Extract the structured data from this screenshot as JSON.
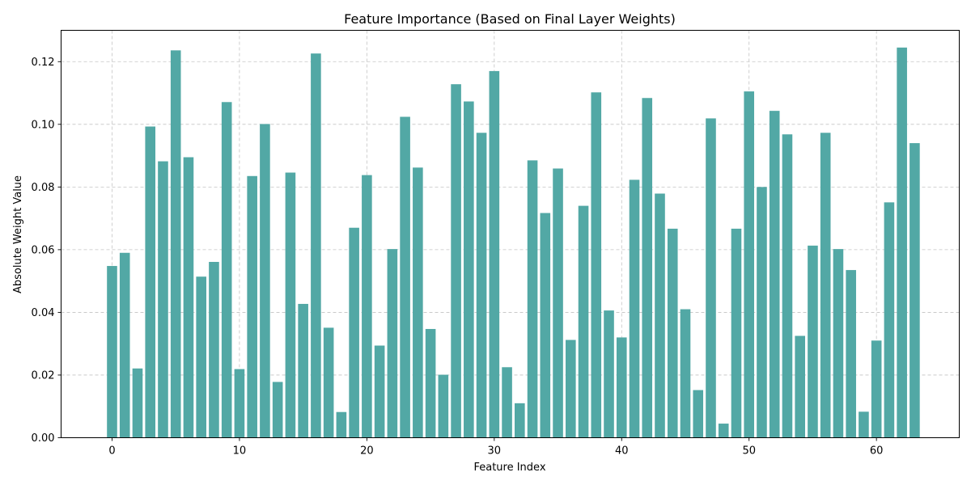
{
  "chart_data": {
    "type": "bar",
    "title": "Feature Importance (Based on Final Layer Weights)",
    "xlabel": "Feature Index",
    "ylabel": "Absolute Weight Value",
    "xlim": [
      -4,
      66.5
    ],
    "ylim": [
      0,
      0.13
    ],
    "xticks": [
      0,
      10,
      20,
      30,
      40,
      50,
      60
    ],
    "xtick_labels": [
      "0",
      "10",
      "20",
      "30",
      "40",
      "50",
      "60"
    ],
    "yticks": [
      0,
      0.02,
      0.04,
      0.06,
      0.08,
      0.1,
      0.12
    ],
    "ytick_labels": [
      "0.00",
      "0.02",
      "0.04",
      "0.06",
      "0.08",
      "0.10",
      "0.12"
    ],
    "grid": true,
    "bar_color": "#52a8a5",
    "categories": [
      0,
      1,
      2,
      3,
      4,
      5,
      6,
      7,
      8,
      9,
      10,
      11,
      12,
      13,
      14,
      15,
      16,
      17,
      18,
      19,
      20,
      21,
      22,
      23,
      24,
      25,
      26,
      27,
      28,
      29,
      30,
      31,
      32,
      33,
      34,
      35,
      36,
      37,
      38,
      39,
      40,
      41,
      42,
      43,
      44,
      45,
      46,
      47,
      48,
      49,
      50,
      51,
      52,
      53,
      54,
      55,
      56,
      57,
      58,
      59,
      60,
      61,
      62,
      63
    ],
    "values": [
      0.0548,
      0.059,
      0.0221,
      0.0993,
      0.0882,
      0.1236,
      0.0895,
      0.0514,
      0.0561,
      0.1071,
      0.0219,
      0.0835,
      0.1001,
      0.0178,
      0.0846,
      0.0427,
      0.1226,
      0.0351,
      0.0082,
      0.067,
      0.0838,
      0.0294,
      0.0602,
      0.1024,
      0.0862,
      0.0347,
      0.0201,
      0.1128,
      0.1073,
      0.0973,
      0.117,
      0.0225,
      0.011,
      0.0885,
      0.0717,
      0.0859,
      0.0312,
      0.074,
      0.1102,
      0.0406,
      0.032,
      0.0823,
      0.1084,
      0.0779,
      0.0667,
      0.041,
      0.0152,
      0.1019,
      0.0045,
      0.0667,
      0.1105,
      0.08,
      0.1043,
      0.0968,
      0.0325,
      0.0613,
      0.0973,
      0.0602,
      0.0535,
      0.0083,
      0.031,
      0.0751,
      0.1245,
      0.094
    ]
  }
}
